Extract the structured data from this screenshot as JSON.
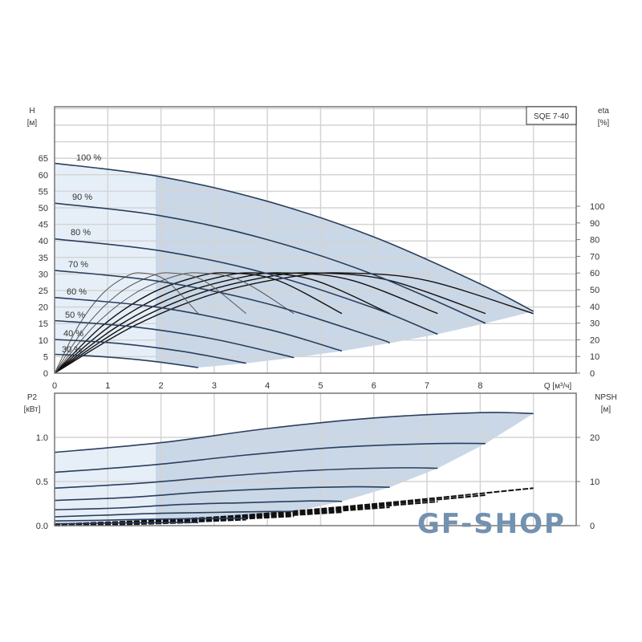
{
  "chart_data": [
    {
      "type": "line",
      "title": "SQE 7-40",
      "xlabel": "Q [м³/ч]",
      "ylabel": "H",
      "ylabel_unit": "[м]",
      "y2label": "eta",
      "y2label_unit": "[%]",
      "xlim": [
        0,
        9.8
      ],
      "ylim": [
        0,
        80
      ],
      "y2lim": [
        0,
        100
      ],
      "x_ticks": [
        "0",
        "1",
        "2",
        "3",
        "4",
        "5",
        "6",
        "7",
        "8"
      ],
      "y_ticks": [
        "0",
        "5",
        "10",
        "15",
        "20",
        "25",
        "30",
        "35",
        "40",
        "45",
        "50",
        "55",
        "60",
        "65"
      ],
      "y2_ticks": [
        "0",
        "10",
        "20",
        "30",
        "40",
        "50",
        "60",
        "70",
        "80",
        "90",
        "100"
      ],
      "grid": true,
      "colors": {
        "curve": "#2a3e5c",
        "eta_curve": "#111111",
        "shade_light": "#e6eff8",
        "shade_dark": "#c9d7e7",
        "grid": "#d4d4d4"
      },
      "head_series": [
        {
          "name": "100 %",
          "q": [
            0,
            2,
            4,
            6,
            8,
            9
          ],
          "h": [
            63.5,
            59.4,
            52.0,
            41.2,
            27.0,
            18.7
          ]
        },
        {
          "name": "90 %",
          "q": [
            0,
            2,
            4,
            6,
            8.1
          ],
          "h": [
            51.4,
            47.6,
            40.4,
            29.8,
            15.1
          ]
        },
        {
          "name": "80 %",
          "q": [
            0,
            2,
            4,
            6,
            7.2
          ],
          "h": [
            40.6,
            37.0,
            30.1,
            19.7,
            11.8
          ]
        },
        {
          "name": "70 %",
          "q": [
            0,
            2,
            4,
            6,
            6.3
          ],
          "h": [
            31.1,
            27.7,
            21.0,
            10.9,
            9.1
          ]
        },
        {
          "name": "60 %",
          "q": [
            0,
            2,
            4,
            5.4
          ],
          "h": [
            22.9,
            19.8,
            13.3,
            6.7
          ]
        },
        {
          "name": "50 %",
          "q": [
            0,
            1.5,
            3,
            4.5
          ],
          "h": [
            15.9,
            14.0,
            10.3,
            4.7
          ]
        },
        {
          "name": "40 %",
          "q": [
            0,
            1.2,
            2.4,
            3.6
          ],
          "h": [
            10.2,
            9.0,
            6.6,
            3.0
          ]
        },
        {
          "name": "30 %",
          "q": [
            0,
            0.9,
            1.8,
            2.7
          ],
          "h": [
            5.7,
            5.0,
            3.7,
            1.7
          ]
        }
      ],
      "eta_series": [
        {
          "q": [
            0,
            1.5,
            3,
            4.5,
            5.5,
            7,
            9
          ],
          "eta": [
            0,
            28.4,
            47.6,
            58,
            60,
            55.5,
            35.7
          ]
        },
        {
          "q": [
            0,
            1.35,
            2.7,
            4.05,
            4.95,
            6.3,
            8.1
          ],
          "eta": [
            0,
            28.4,
            47.6,
            58,
            60,
            55.5,
            35.7
          ]
        },
        {
          "q": [
            0,
            1.2,
            2.4,
            3.6,
            4.4,
            5.6,
            7.2
          ],
          "eta": [
            0,
            28.4,
            47.6,
            58,
            60,
            55.5,
            35.7
          ]
        },
        {
          "q": [
            0,
            1.05,
            2.1,
            3.15,
            3.85,
            4.9,
            6.3
          ],
          "eta": [
            0,
            28.4,
            47.6,
            58,
            60,
            55.5,
            35.7
          ]
        },
        {
          "q": [
            0,
            0.9,
            1.8,
            2.7,
            3.3,
            4.2,
            5.4
          ],
          "eta": [
            0,
            28.4,
            47.6,
            58,
            60,
            55.5,
            35.7
          ]
        },
        {
          "q": [
            0,
            0.75,
            1.5,
            2.25,
            2.75,
            3.5,
            4.5
          ],
          "eta": [
            0,
            28.4,
            47.6,
            58,
            60,
            55.5,
            35.7
          ]
        },
        {
          "q": [
            0,
            0.6,
            1.2,
            1.8,
            2.2,
            2.8,
            3.6
          ],
          "eta": [
            0,
            28.4,
            47.6,
            58,
            60,
            55.5,
            35.7
          ]
        },
        {
          "q": [
            0,
            0.45,
            0.9,
            1.35,
            1.65,
            2.1,
            2.7
          ],
          "eta": [
            0,
            28.4,
            47.6,
            58,
            60,
            55.5,
            35.7
          ]
        }
      ]
    },
    {
      "type": "line",
      "xlabel": "",
      "ylabel": "P2",
      "ylabel_unit": "[кВт]",
      "y2label": "NPSH",
      "y2label_unit": "[м]",
      "xlim": [
        0,
        9.8
      ],
      "ylim": [
        0,
        1.5
      ],
      "y2lim": [
        0,
        30
      ],
      "y_ticks": [
        "0.0",
        "0.5",
        "1.0"
      ],
      "y2_ticks": [
        "0",
        "10",
        "20"
      ],
      "grid": true,
      "power_series": [
        {
          "q": [
            0,
            2,
            4,
            6,
            8,
            9
          ],
          "p": [
            0.83,
            0.94,
            1.1,
            1.22,
            1.28,
            1.27
          ]
        },
        {
          "q": [
            0,
            1.8,
            3.6,
            5.4,
            7.2,
            8.1
          ],
          "p": [
            0.605,
            0.685,
            0.8,
            0.89,
            0.93,
            0.93
          ]
        },
        {
          "q": [
            0,
            1.6,
            3.2,
            4.8,
            6.4,
            7.2
          ],
          "p": [
            0.425,
            0.48,
            0.56,
            0.625,
            0.655,
            0.65
          ]
        },
        {
          "q": [
            0,
            1.4,
            2.8,
            4.2,
            5.6,
            6.3
          ],
          "p": [
            0.285,
            0.32,
            0.38,
            0.42,
            0.44,
            0.435
          ]
        },
        {
          "q": [
            0,
            1.2,
            2.4,
            3.6,
            4.8,
            5.4
          ],
          "p": [
            0.18,
            0.2,
            0.24,
            0.26,
            0.28,
            0.275
          ]
        },
        {
          "q": [
            0,
            1,
            2,
            3,
            4,
            4.5
          ],
          "p": [
            0.1,
            0.12,
            0.14,
            0.15,
            0.16,
            0.16
          ]
        },
        {
          "q": [
            0,
            0.8,
            1.6,
            2.4,
            3.2,
            3.6
          ],
          "p": [
            0.053,
            0.06,
            0.07,
            0.078,
            0.082,
            0.081
          ]
        },
        {
          "q": [
            0,
            0.6,
            1.2,
            1.8,
            2.4,
            2.7
          ],
          "p": [
            0.022,
            0.025,
            0.03,
            0.033,
            0.035,
            0.034
          ]
        }
      ],
      "npsh_series": [
        {
          "q": [
            0,
            3,
            6,
            9
          ],
          "npsh": [
            0.3,
            1.9,
            4.9,
            8.5
          ]
        },
        {
          "q": [
            0,
            2.7,
            5.4,
            8.1
          ],
          "npsh": [
            0.24,
            1.54,
            3.97,
            6.9
          ]
        },
        {
          "q": [
            0,
            2.4,
            4.8,
            7.2
          ],
          "npsh": [
            0.19,
            1.22,
            3.14,
            5.44
          ]
        },
        {
          "q": [
            0,
            2.1,
            4.2,
            6.3
          ],
          "npsh": [
            0.15,
            0.93,
            2.4,
            4.17
          ]
        },
        {
          "q": [
            0,
            1.8,
            3.6,
            5.4
          ],
          "npsh": [
            0.11,
            0.68,
            1.76,
            3.06
          ]
        },
        {
          "q": [
            0,
            1.5,
            3,
            4.5
          ],
          "npsh": [
            0.08,
            0.48,
            1.23,
            2.13
          ]
        },
        {
          "q": [
            0,
            1.2,
            2.4,
            3.6
          ],
          "npsh": [
            0.05,
            0.3,
            0.78,
            1.36
          ]
        },
        {
          "q": [
            0,
            0.9,
            1.8,
            2.7
          ],
          "npsh": [
            0.03,
            0.17,
            0.44,
            0.77
          ]
        }
      ]
    }
  ],
  "watermark": "GF-SHOP"
}
